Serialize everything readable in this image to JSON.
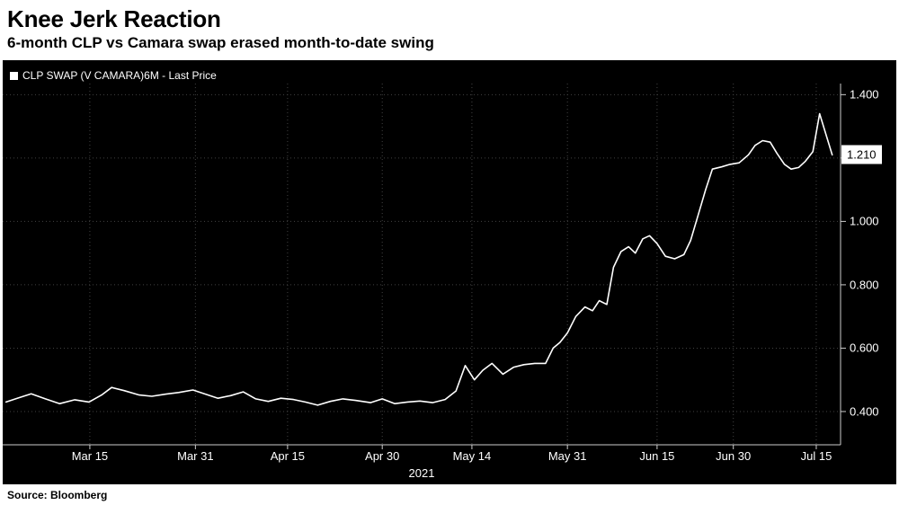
{
  "header": {
    "title": "Knee Jerk Reaction",
    "subtitle": "6-month CLP vs Camara swap erased month-to-date swing"
  },
  "legend": {
    "label": "CLP SWAP (V CAMARA)6M - Last Price"
  },
  "axis": {
    "year_label": "2021"
  },
  "last_price_label": "1.210",
  "footer": {
    "source": "Source: Bloomberg"
  },
  "colors": {
    "background": "#ffffff",
    "panel": "#000000",
    "series_line": "#ffffff",
    "grid": "#424242",
    "axis_line": "#cccccc",
    "text_on_dark": "#ffffff",
    "text_on_light": "#000000",
    "last_price_box_bg": "#ffffff",
    "last_price_box_text": "#000000"
  },
  "chart_data": {
    "type": "line",
    "title": "Knee Jerk Reaction",
    "subtitle": "6-month CLP vs Camara swap erased month-to-date swing",
    "series_name": "CLP SWAP (V CAMARA)6M - Last Price",
    "legend_position": "top-left",
    "grid": "dotted",
    "ylim": [
      0.295,
      1.435
    ],
    "last_price": 1.21,
    "yticks": [
      {
        "value": 0.4,
        "label": "0.400"
      },
      {
        "value": 0.6,
        "label": "0.600"
      },
      {
        "value": 0.8,
        "label": "0.800"
      },
      {
        "value": 1.0,
        "label": "1.000"
      },
      {
        "value": 1.2,
        "label": "1.200"
      },
      {
        "value": 1.4,
        "label": "1.400"
      }
    ],
    "xticks": [
      {
        "label": "Mar 15",
        "pct": 10.4
      },
      {
        "label": "Mar 31",
        "pct": 23.0
      },
      {
        "label": "Apr 15",
        "pct": 34.0
      },
      {
        "label": "Apr 30",
        "pct": 45.3
      },
      {
        "label": "May 14",
        "pct": 56.0
      },
      {
        "label": "May 31",
        "pct": 67.4
      },
      {
        "label": "Jun 15",
        "pct": 78.1
      },
      {
        "label": "Jun 30",
        "pct": 87.2
      },
      {
        "label": "Jul 15",
        "pct": 97.1
      }
    ],
    "x_year": "2021",
    "points": [
      [
        0.4,
        0.43
      ],
      [
        1.9,
        0.443
      ],
      [
        3.4,
        0.456
      ],
      [
        5.1,
        0.44
      ],
      [
        6.8,
        0.425
      ],
      [
        8.6,
        0.437
      ],
      [
        10.3,
        0.43
      ],
      [
        11.8,
        0.452
      ],
      [
        13.0,
        0.476
      ],
      [
        14.5,
        0.466
      ],
      [
        16.3,
        0.452
      ],
      [
        17.8,
        0.448
      ],
      [
        19.5,
        0.455
      ],
      [
        21.0,
        0.46
      ],
      [
        22.7,
        0.468
      ],
      [
        24.2,
        0.455
      ],
      [
        25.7,
        0.442
      ],
      [
        27.2,
        0.45
      ],
      [
        28.7,
        0.462
      ],
      [
        30.2,
        0.44
      ],
      [
        31.7,
        0.432
      ],
      [
        33.2,
        0.442
      ],
      [
        34.7,
        0.438
      ],
      [
        36.1,
        0.43
      ],
      [
        37.6,
        0.42
      ],
      [
        39.1,
        0.432
      ],
      [
        40.6,
        0.44
      ],
      [
        42.1,
        0.435
      ],
      [
        43.9,
        0.428
      ],
      [
        45.3,
        0.44
      ],
      [
        46.8,
        0.425
      ],
      [
        48.3,
        0.43
      ],
      [
        49.8,
        0.433
      ],
      [
        51.3,
        0.428
      ],
      [
        52.8,
        0.438
      ],
      [
        54.1,
        0.465
      ],
      [
        55.2,
        0.545
      ],
      [
        56.3,
        0.5
      ],
      [
        57.3,
        0.53
      ],
      [
        58.4,
        0.552
      ],
      [
        59.7,
        0.518
      ],
      [
        61.0,
        0.54
      ],
      [
        62.2,
        0.548
      ],
      [
        63.5,
        0.552
      ],
      [
        64.8,
        0.552
      ],
      [
        65.7,
        0.6
      ],
      [
        66.5,
        0.618
      ],
      [
        67.4,
        0.648
      ],
      [
        68.4,
        0.7
      ],
      [
        69.5,
        0.73
      ],
      [
        70.4,
        0.718
      ],
      [
        71.2,
        0.75
      ],
      [
        72.1,
        0.738
      ],
      [
        72.9,
        0.855
      ],
      [
        73.8,
        0.905
      ],
      [
        74.7,
        0.92
      ],
      [
        75.5,
        0.9
      ],
      [
        76.4,
        0.945
      ],
      [
        77.2,
        0.955
      ],
      [
        78.1,
        0.93
      ],
      [
        79.1,
        0.89
      ],
      [
        80.2,
        0.882
      ],
      [
        81.3,
        0.895
      ],
      [
        82.1,
        0.94
      ],
      [
        83.0,
        1.02
      ],
      [
        83.9,
        1.1
      ],
      [
        84.7,
        1.165
      ],
      [
        85.8,
        1.172
      ],
      [
        86.8,
        1.18
      ],
      [
        87.9,
        1.185
      ],
      [
        89.0,
        1.21
      ],
      [
        89.8,
        1.24
      ],
      [
        90.7,
        1.255
      ],
      [
        91.6,
        1.25
      ],
      [
        92.4,
        1.215
      ],
      [
        93.3,
        1.18
      ],
      [
        94.1,
        1.165
      ],
      [
        95.0,
        1.17
      ],
      [
        95.8,
        1.19
      ],
      [
        96.7,
        1.22
      ],
      [
        97.5,
        1.34
      ],
      [
        98.4,
        1.262
      ],
      [
        99.0,
        1.21
      ]
    ]
  }
}
